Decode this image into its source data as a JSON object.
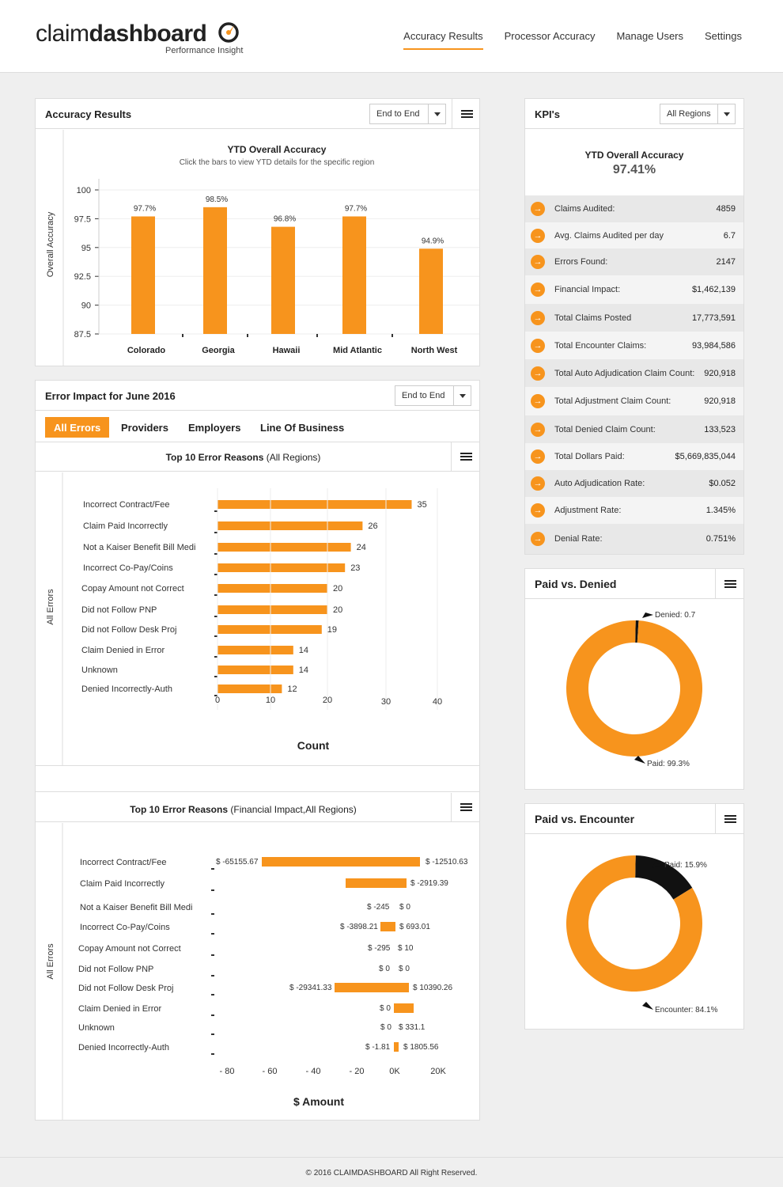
{
  "brand": {
    "prefix": "claim",
    "name": "dashboard",
    "tagline": "Performance Insight"
  },
  "nav": {
    "items": [
      "Accuracy Results",
      "Processor Accuracy",
      "Manage Users",
      "Settings"
    ],
    "active": "Accuracy Results"
  },
  "accuracy_card": {
    "title": "Accuracy Results",
    "select_value": "End to End",
    "chart_title": "YTD Overall Accuracy",
    "chart_subtitle": "Click the bars to view YTD details for the specific region",
    "y_label": "Overall Accuracy"
  },
  "error_card": {
    "title": "Error Impact for June 2016",
    "select_value": "End to End",
    "tabs": [
      "All Errors",
      "Providers",
      "Employers",
      "Line Of Business"
    ],
    "chart1_title": "Top 10 Error Reasons",
    "chart1_suffix": "(All Regions)",
    "chart1_side": "All Errors",
    "chart1_xlabel": "Count",
    "chart2_title": "Top 10 Error Reasons",
    "chart2_suffix": "(Financial Impact,All Regions)",
    "chart2_side": "All Errors",
    "chart2_xlabel": "$ Amount"
  },
  "kpi": {
    "title": "KPI's",
    "select_value": "All Regions",
    "headline_label": "YTD Overall Accuracy",
    "headline_value": "97.41%",
    "rows": [
      {
        "label": "Claims Audited:",
        "value": "4859"
      },
      {
        "label": "Avg. Claims Audited per day",
        "value": "6.7"
      },
      {
        "label": "Errors Found:",
        "value": "2147"
      },
      {
        "label": "Financial Impact:",
        "value": "$1,462,139"
      },
      {
        "label": "Total Claims Posted",
        "value": "17,773,591"
      },
      {
        "label": "Total Encounter Claims:",
        "value": "93,984,586"
      },
      {
        "label": "Total Auto Adjudication Claim Count:",
        "value": "920,918"
      },
      {
        "label": "Total Adjustment Claim Count:",
        "value": "920,918"
      },
      {
        "label": "Total Denied Claim Count:",
        "value": "133,523"
      },
      {
        "label": "Total Dollars Paid:",
        "value": "$5,669,835,044"
      },
      {
        "label": "Auto Adjudication Rate:",
        "value": "$0.052"
      },
      {
        "label": "Adjustment Rate:",
        "value": "1.345%"
      },
      {
        "label": "Denial Rate:",
        "value": "0.751%"
      }
    ]
  },
  "paid_denied": {
    "title": "Paid vs. Denied",
    "label_small": "Denied: 0.7",
    "label_big": "Paid: 99.3%"
  },
  "paid_encounter": {
    "title": "Paid vs. Encounter",
    "label_small": "Paid: 15.9%",
    "label_big": "Encounter: 84.1%"
  },
  "footer": {
    "text": "© 2016 CLAIMDASHBOARD All Right Reserved."
  },
  "colors": {
    "accent": "#f7941d",
    "dark": "#111111"
  },
  "chart_data": [
    {
      "type": "bar",
      "title": "YTD Overall Accuracy",
      "categories": [
        "Colorado",
        "Georgia",
        "Hawaii",
        "Mid Atlantic",
        "North West"
      ],
      "values": [
        97.7,
        98.5,
        96.8,
        97.7,
        94.9
      ],
      "value_labels": [
        "97.7%",
        "98.5%",
        "96.8%",
        "97.7%",
        "94.9%"
      ],
      "ylabel": "Overall Accuracy",
      "ylim": [
        87.5,
        100
      ],
      "yticks": [
        "100",
        "97.5",
        "95",
        "92.5",
        "90",
        "87.5"
      ]
    },
    {
      "type": "bar",
      "orientation": "horizontal",
      "title": "Top 10 Error Reasons (All Regions)",
      "categories": [
        "Incorrect Contract/Fee",
        "Claim Paid Incorrectly",
        "Not a Kaiser Benefit Bill Medi",
        "Incorrect Co-Pay/Coins",
        "Copay Amount not Correct",
        "Did not Follow PNP",
        "Did not Follow Desk Proj",
        "Claim Denied in Error",
        "Unknown",
        "Denied Incorrectly-Auth"
      ],
      "values": [
        35,
        26,
        24,
        23,
        20,
        20,
        19,
        14,
        14,
        12
      ],
      "xlabel": "Count",
      "xlim": [
        0,
        40
      ],
      "xticks": [
        "0",
        "10",
        "20",
        "30",
        "40"
      ]
    },
    {
      "type": "bar",
      "orientation": "horizontal",
      "title": "Top 10 Error Reasons (Financial Impact,All Regions)",
      "categories": [
        "Incorrect Contract/Fee",
        "Claim Paid Incorrectly",
        "Not a Kaiser Benefit Bill Medi",
        "Incorrect Co-Pay/Coins",
        "Copay Amount not Correct",
        "Did not Follow PNP",
        "Did not Follow Desk Proj",
        "Claim Denied in Error",
        "Unknown",
        "Denied Incorrectly-Auth"
      ],
      "series": [
        {
          "name": "negative",
          "values": [
            -65155.67,
            null,
            -245,
            -3898.21,
            -295,
            0,
            -29341.33,
            0,
            0,
            -1.81
          ],
          "labels": [
            "$ -65155.67",
            "",
            "$ -245",
            "$ -3898.21",
            "$ -295",
            "$ 0",
            "$ -29341.33",
            "$ 0",
            "$ 0",
            "$ -1.81"
          ]
        },
        {
          "name": "positive",
          "values": [
            -12510.63,
            -2919.39,
            0,
            693.01,
            10,
            0,
            10390.26,
            null,
            331.1,
            1805.56
          ],
          "labels": [
            "$ -12510.63",
            "$ -2919.39",
            "$ 0",
            "$ 693.01",
            "$ 10",
            "$ 0",
            "$ 10390.26",
            "",
            "$ 331.1",
            "$ 1805.56"
          ]
        }
      ],
      "xlabel": "$ Amount",
      "xticks": [
        "- 80",
        "- 60",
        "- 40",
        "- 20",
        "0K",
        "20K"
      ]
    },
    {
      "type": "pie",
      "title": "Paid vs. Denied",
      "labels": [
        "Denied",
        "Paid"
      ],
      "values": [
        0.7,
        99.3
      ]
    },
    {
      "type": "pie",
      "title": "Paid vs. Encounter",
      "labels": [
        "Paid",
        "Encounter"
      ],
      "values": [
        15.9,
        84.1
      ]
    }
  ]
}
